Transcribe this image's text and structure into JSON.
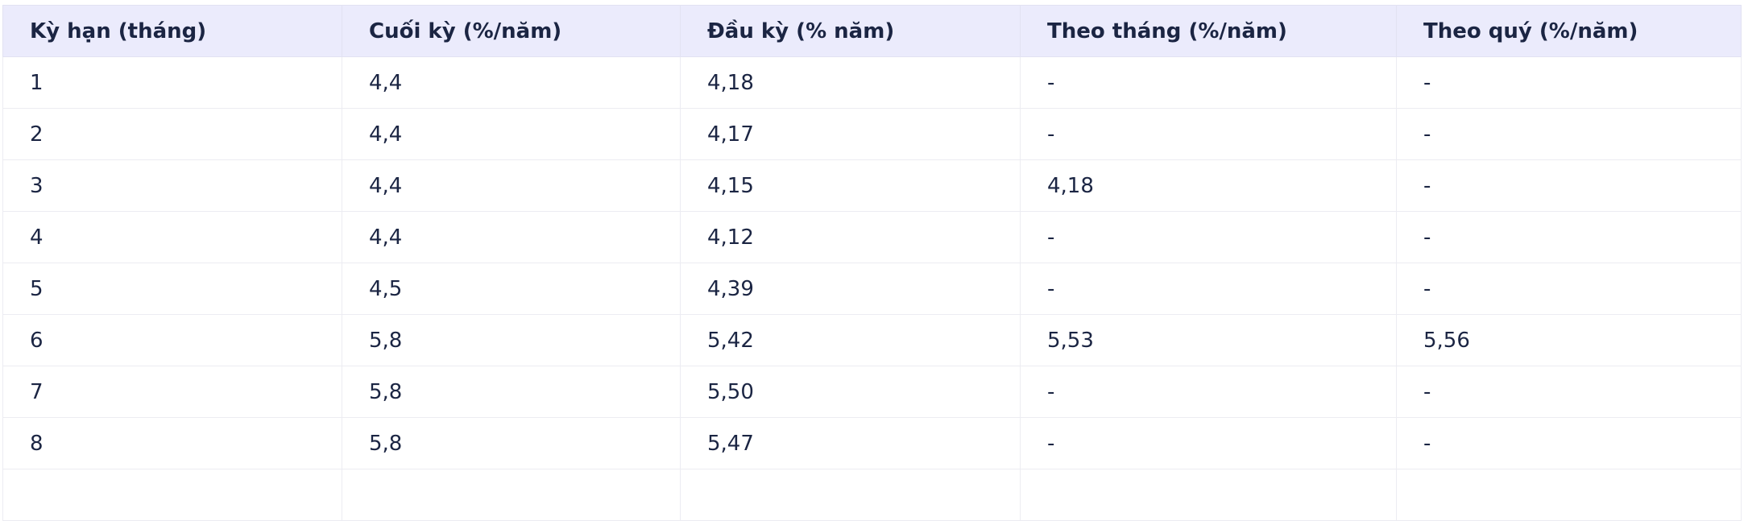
{
  "table": {
    "header": [
      "Kỳ hạn (tháng)",
      "Cuối kỳ (%/năm)",
      "Đầu kỳ (% năm)",
      "Theo tháng (%/năm)",
      "Theo quý (%/năm)"
    ],
    "rows": [
      [
        "1",
        "4,4",
        "4,18",
        "-",
        "-"
      ],
      [
        "2",
        "4,4",
        "4,17",
        "-",
        "-"
      ],
      [
        "3",
        "4,4",
        "4,15",
        "4,18",
        "-"
      ],
      [
        "4",
        "4,4",
        "4,12",
        "-",
        "-"
      ],
      [
        "5",
        "4,5",
        "4,39",
        "-",
        "-"
      ],
      [
        "6",
        "5,8",
        "5,42",
        "5,53",
        "5,56"
      ],
      [
        "7",
        "5,8",
        "5,50",
        "-",
        "-"
      ],
      [
        "8",
        "5,8",
        "5,47",
        "-",
        "-"
      ]
    ]
  }
}
